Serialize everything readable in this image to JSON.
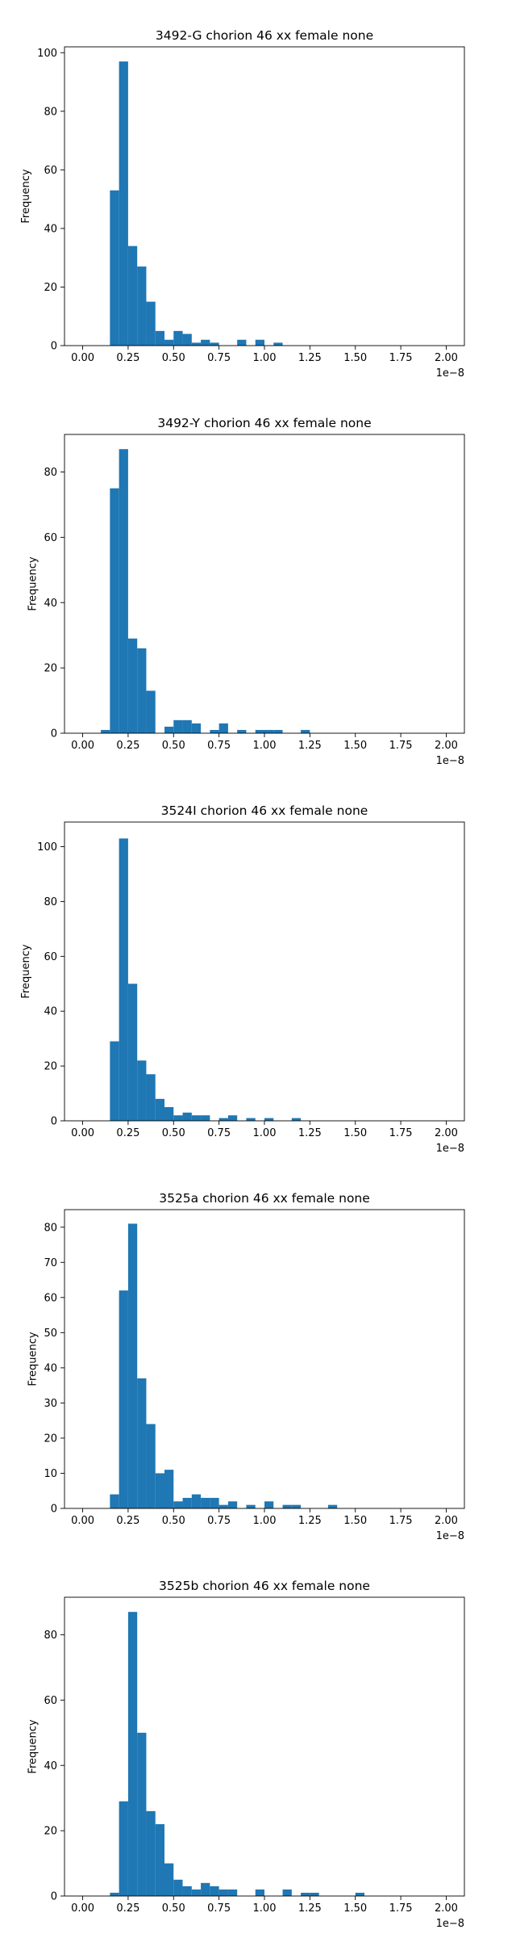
{
  "chart_data": [
    {
      "type": "bar",
      "title": "3492-G chorion 46 xx female none",
      "ylabel": "Frequency",
      "offset_label": "1e−8",
      "xlim": [
        -0.1,
        2.1
      ],
      "ylim": [
        0,
        102
      ],
      "bin_width": 0.05,
      "bin_starts": [
        0.0,
        0.05,
        0.1,
        0.15,
        0.2,
        0.25,
        0.3,
        0.35,
        0.4,
        0.45,
        0.5,
        0.55,
        0.6,
        0.65,
        0.7,
        0.75,
        0.8,
        0.85,
        0.9,
        0.95,
        1.0,
        1.05,
        1.1,
        1.15,
        1.2,
        1.25,
        1.3,
        1.35,
        1.4,
        1.45,
        1.5,
        1.55,
        1.6,
        1.65,
        1.7,
        1.75,
        1.8,
        1.85,
        1.9,
        1.95
      ],
      "values": [
        0,
        0,
        0,
        53,
        97,
        34,
        27,
        15,
        5,
        2,
        5,
        4,
        1,
        2,
        1,
        0,
        0,
        2,
        0,
        2,
        0,
        1,
        0,
        0,
        0,
        0,
        0,
        0,
        0,
        0,
        0,
        0,
        0,
        0,
        0,
        0,
        0,
        0,
        0,
        0
      ],
      "xticks": [
        0.0,
        0.25,
        0.5,
        0.75,
        1.0,
        1.25,
        1.5,
        1.75,
        2.0
      ],
      "xtick_labels": [
        "0.00",
        "0.25",
        "0.50",
        "0.75",
        "1.00",
        "1.25",
        "1.50",
        "1.75",
        "2.00"
      ],
      "yticks": [
        0,
        20,
        40,
        60,
        80,
        100
      ],
      "ytick_labels": [
        "0",
        "20",
        "40",
        "60",
        "80",
        "100"
      ],
      "color": "#1f77b4"
    },
    {
      "type": "bar",
      "title": "3492-Y chorion 46 xx female none",
      "ylabel": "Frequency",
      "offset_label": "1e−8",
      "xlim": [
        -0.1,
        2.1
      ],
      "ylim": [
        0,
        91.5
      ],
      "bin_width": 0.05,
      "bin_starts": [
        0.0,
        0.05,
        0.1,
        0.15,
        0.2,
        0.25,
        0.3,
        0.35,
        0.4,
        0.45,
        0.5,
        0.55,
        0.6,
        0.65,
        0.7,
        0.75,
        0.8,
        0.85,
        0.9,
        0.95,
        1.0,
        1.05,
        1.1,
        1.15,
        1.2,
        1.25,
        1.3,
        1.35,
        1.4,
        1.45,
        1.5,
        1.55,
        1.6,
        1.65,
        1.7,
        1.75,
        1.8,
        1.85,
        1.9,
        1.95
      ],
      "values": [
        0,
        0,
        1,
        75,
        87,
        29,
        26,
        13,
        0,
        2,
        4,
        4,
        3,
        0,
        1,
        3,
        0,
        1,
        0,
        1,
        1,
        1,
        0,
        0,
        1,
        0,
        0,
        0,
        0,
        0,
        0,
        0,
        0,
        0,
        0,
        0,
        0,
        0,
        0,
        0
      ],
      "xticks": [
        0.0,
        0.25,
        0.5,
        0.75,
        1.0,
        1.25,
        1.5,
        1.75,
        2.0
      ],
      "xtick_labels": [
        "0.00",
        "0.25",
        "0.50",
        "0.75",
        "1.00",
        "1.25",
        "1.50",
        "1.75",
        "2.00"
      ],
      "yticks": [
        0,
        20,
        40,
        60,
        80
      ],
      "ytick_labels": [
        "0",
        "20",
        "40",
        "60",
        "80"
      ],
      "color": "#1f77b4"
    },
    {
      "type": "bar",
      "title": "3524I chorion 46 xx female none",
      "ylabel": "Frequency",
      "offset_label": "1e−8",
      "xlim": [
        -0.1,
        2.1
      ],
      "ylim": [
        0,
        109
      ],
      "bin_width": 0.05,
      "bin_starts": [
        0.0,
        0.05,
        0.1,
        0.15,
        0.2,
        0.25,
        0.3,
        0.35,
        0.4,
        0.45,
        0.5,
        0.55,
        0.6,
        0.65,
        0.7,
        0.75,
        0.8,
        0.85,
        0.9,
        0.95,
        1.0,
        1.05,
        1.1,
        1.15,
        1.2,
        1.25,
        1.3,
        1.35,
        1.4,
        1.45,
        1.5,
        1.55,
        1.6,
        1.65,
        1.7,
        1.75,
        1.8,
        1.85,
        1.9,
        1.95
      ],
      "values": [
        0,
        0,
        0,
        29,
        103,
        50,
        22,
        17,
        8,
        5,
        2,
        3,
        2,
        2,
        0,
        1,
        2,
        0,
        1,
        0,
        1,
        0,
        0,
        1,
        0,
        0,
        0,
        0,
        0,
        0,
        0,
        0,
        0,
        0,
        0,
        0,
        0,
        0,
        0,
        0
      ],
      "xticks": [
        0.0,
        0.25,
        0.5,
        0.75,
        1.0,
        1.25,
        1.5,
        1.75,
        2.0
      ],
      "xtick_labels": [
        "0.00",
        "0.25",
        "0.50",
        "0.75",
        "1.00",
        "1.25",
        "1.50",
        "1.75",
        "2.00"
      ],
      "yticks": [
        0,
        20,
        40,
        60,
        80,
        100
      ],
      "ytick_labels": [
        "0",
        "20",
        "40",
        "60",
        "80",
        "100"
      ],
      "color": "#1f77b4"
    },
    {
      "type": "bar",
      "title": "3525a chorion 46 xx female none",
      "ylabel": "Frequency",
      "offset_label": "1e−8",
      "xlim": [
        -0.1,
        2.1
      ],
      "ylim": [
        0,
        85
      ],
      "bin_width": 0.05,
      "bin_starts": [
        0.0,
        0.05,
        0.1,
        0.15,
        0.2,
        0.25,
        0.3,
        0.35,
        0.4,
        0.45,
        0.5,
        0.55,
        0.6,
        0.65,
        0.7,
        0.75,
        0.8,
        0.85,
        0.9,
        0.95,
        1.0,
        1.05,
        1.1,
        1.15,
        1.2,
        1.25,
        1.3,
        1.35,
        1.4,
        1.45,
        1.5,
        1.55,
        1.6,
        1.65,
        1.7,
        1.75,
        1.8,
        1.85,
        1.9,
        1.95
      ],
      "values": [
        0,
        0,
        0,
        4,
        62,
        81,
        37,
        24,
        10,
        11,
        2,
        3,
        4,
        3,
        3,
        1,
        2,
        0,
        1,
        0,
        2,
        0,
        1,
        1,
        0,
        0,
        0,
        1,
        0,
        0,
        0,
        0,
        0,
        0,
        0,
        0,
        0,
        0,
        0,
        0
      ],
      "xticks": [
        0.0,
        0.25,
        0.5,
        0.75,
        1.0,
        1.25,
        1.5,
        1.75,
        2.0
      ],
      "xtick_labels": [
        "0.00",
        "0.25",
        "0.50",
        "0.75",
        "1.00",
        "1.25",
        "1.50",
        "1.75",
        "2.00"
      ],
      "yticks": [
        0,
        10,
        20,
        30,
        40,
        50,
        60,
        70,
        80
      ],
      "ytick_labels": [
        "0",
        "10",
        "20",
        "30",
        "40",
        "50",
        "60",
        "70",
        "80"
      ],
      "color": "#1f77b4"
    },
    {
      "type": "bar",
      "title": "3525b chorion 46 xx female none",
      "ylabel": "Frequency",
      "offset_label": "1e−8",
      "xlim": [
        -0.1,
        2.1
      ],
      "ylim": [
        0,
        91.5
      ],
      "bin_width": 0.05,
      "bin_starts": [
        0.0,
        0.05,
        0.1,
        0.15,
        0.2,
        0.25,
        0.3,
        0.35,
        0.4,
        0.45,
        0.5,
        0.55,
        0.6,
        0.65,
        0.7,
        0.75,
        0.8,
        0.85,
        0.9,
        0.95,
        1.0,
        1.05,
        1.1,
        1.15,
        1.2,
        1.25,
        1.3,
        1.35,
        1.4,
        1.45,
        1.5,
        1.55,
        1.6,
        1.65,
        1.7,
        1.75,
        1.8,
        1.85,
        1.9,
        1.95
      ],
      "values": [
        0,
        0,
        0,
        1,
        29,
        87,
        50,
        26,
        22,
        10,
        5,
        3,
        2,
        4,
        3,
        2,
        2,
        0,
        0,
        2,
        0,
        0,
        2,
        0,
        1,
        1,
        0,
        0,
        0,
        0,
        1,
        0,
        0,
        0,
        0,
        0,
        0,
        0,
        0,
        0
      ],
      "xticks": [
        0.0,
        0.25,
        0.5,
        0.75,
        1.0,
        1.25,
        1.5,
        1.75,
        2.0
      ],
      "xtick_labels": [
        "0.00",
        "0.25",
        "0.50",
        "0.75",
        "1.00",
        "1.25",
        "1.50",
        "1.75",
        "2.00"
      ],
      "yticks": [
        0,
        20,
        40,
        60,
        80
      ],
      "ytick_labels": [
        "0",
        "20",
        "40",
        "60",
        "80"
      ],
      "color": "#1f77b4"
    }
  ]
}
